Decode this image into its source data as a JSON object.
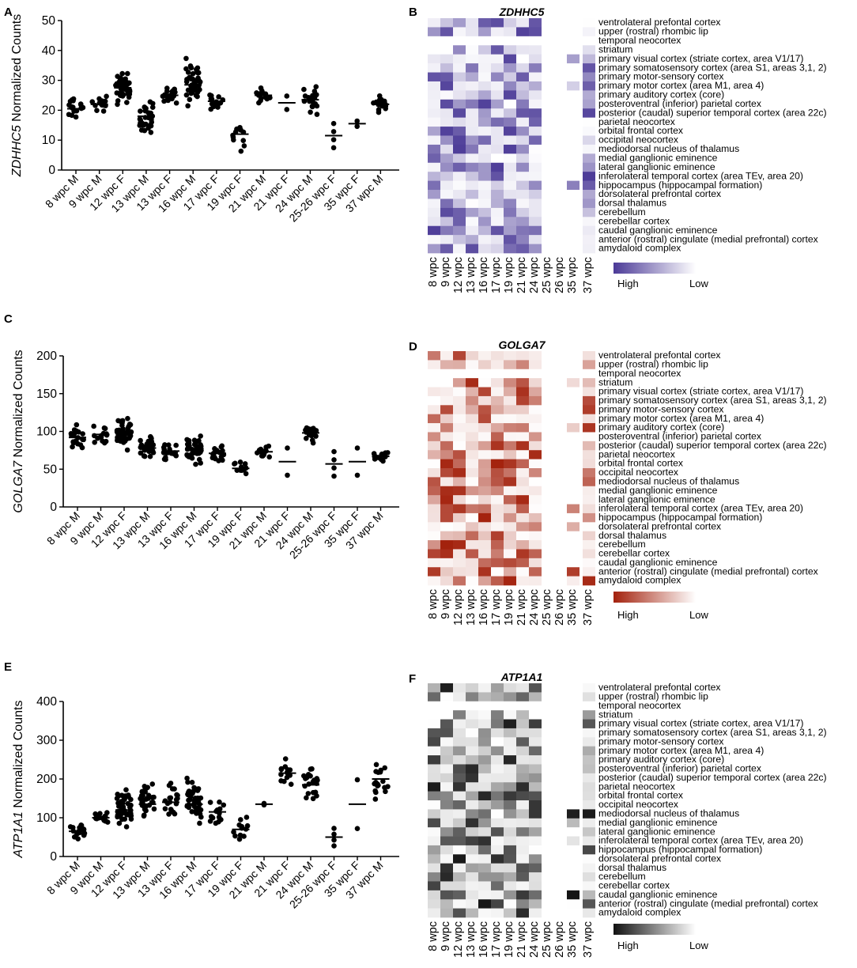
{
  "chart_data": [
    {
      "panel": "A",
      "type": "scatter",
      "gene": "ZDHHC5",
      "ylabel_suffix": " Normalized Counts",
      "ylim": [
        0,
        50
      ],
      "yticks": [
        0,
        10,
        20,
        30,
        40,
        50
      ],
      "categories": [
        "8 wpc M",
        "9 wpc M",
        "12 wpc F",
        "13 wpc M",
        "13 wpc F",
        "16 wpc M",
        "17 wpc F",
        "19 wpc F",
        "21 wpc M",
        "21 wpc F",
        "24 wpc M",
        "25-26 wpc F",
        "35 wpc F",
        "37 wpc M"
      ],
      "means": [
        20.5,
        22,
        27.5,
        18,
        25,
        28.5,
        23,
        12,
        25,
        22.5,
        23.5,
        11.5,
        15.5,
        22
      ],
      "counts": [
        20,
        15,
        50,
        30,
        20,
        45,
        15,
        12,
        14,
        2,
        20,
        4,
        2,
        18
      ],
      "spreads": [
        4,
        3,
        4.5,
        5,
        2.5,
        6,
        3,
        4,
        2,
        2.5,
        4,
        4.5,
        1,
        3
      ]
    },
    {
      "panel": "C",
      "type": "scatter",
      "gene": "GOLGA7",
      "ylabel_suffix": " Normalized Counts",
      "ylim": [
        0,
        200
      ],
      "yticks": [
        0,
        50,
        100,
        150,
        200
      ],
      "categories": [
        "8 wpc M",
        "9 wpc M",
        "12 wpc F",
        "13 wpc M",
        "13 wpc F",
        "16 wpc M",
        "17 wpc F",
        "19 wpc F",
        "21 wpc M",
        "21 wpc F",
        "24 wpc M",
        "25-26 wpc F",
        "35 wpc F",
        "37 wpc M"
      ],
      "means": [
        92,
        96,
        97,
        78,
        74,
        75,
        71,
        51,
        73,
        60,
        98,
        57,
        60,
        67
      ],
      "counts": [
        20,
        15,
        50,
        30,
        20,
        45,
        15,
        12,
        14,
        2,
        20,
        4,
        2,
        18
      ],
      "spreads": [
        12,
        12,
        16,
        14,
        10,
        17,
        10,
        10,
        7,
        20,
        12,
        18,
        20,
        7
      ]
    },
    {
      "panel": "E",
      "type": "scatter",
      "gene": "ATP1A1",
      "ylabel_suffix": " Normalized Counts",
      "ylim": [
        0,
        400
      ],
      "yticks": [
        0,
        100,
        200,
        300,
        400
      ],
      "categories": [
        "8 wpc M",
        "9 wpc M",
        "12 wpc F",
        "13 wpc M",
        "13 wpc F",
        "16 wpc M",
        "17 wpc F",
        "19 wpc F",
        "21 wpc M",
        "21 wpc F",
        "24 wpc M",
        "25-26 wpc F",
        "35 wpc F",
        "37 wpc M"
      ],
      "means": [
        65,
        100,
        120,
        135,
        140,
        135,
        115,
        70,
        135,
        215,
        185,
        50,
        135,
        200
      ],
      "counts": [
        20,
        15,
        50,
        30,
        20,
        45,
        15,
        12,
        2,
        14,
        20,
        4,
        2,
        18
      ],
      "spreads": [
        15,
        15,
        45,
        45,
        40,
        50,
        35,
        28,
        2,
        40,
        40,
        25,
        70,
        50
      ]
    },
    {
      "panel": "B",
      "type": "heatmap",
      "title": "ZDHHC5",
      "palette": {
        "high": "#4b3a97",
        "low": "#ffffff"
      },
      "legend": {
        "high": "High",
        "low": "Low"
      }
    },
    {
      "panel": "D",
      "type": "heatmap",
      "title": "GOLGA7",
      "palette": {
        "high": "#a3210c",
        "low": "#ffffff"
      },
      "legend": {
        "high": "High",
        "low": "Low"
      }
    },
    {
      "panel": "F",
      "type": "heatmap",
      "title": "ATP1A1",
      "palette": {
        "high": "#111111",
        "low": "#ffffff"
      },
      "legend": {
        "high": "High",
        "low": "Low"
      }
    }
  ],
  "panel_labels": [
    "A",
    "B",
    "C",
    "D",
    "E",
    "F"
  ],
  "heatmap_columns": [
    "8 wpc",
    "9 wpc",
    "12 wpc",
    "13 wpc",
    "16 wpc",
    "17 wpc",
    "19 wpc",
    "21 wpc",
    "24 wpc",
    "25 wpc",
    "26 wpc",
    "35 wpc",
    "37 wpc"
  ],
  "heatmap_rows": [
    "ventrolateral prefontal cortex",
    "upper (rostral) rhombic lip",
    "temporal neocortex",
    "striatum",
    "primary visual cortex (striate cortex, area V1/17)",
    "primary somatosensory cortex (area S1, areas 3,1, 2)",
    "primary motor-sensory cortex",
    "primary motor cortex (area M1, area 4)",
    "primary auditory cortex (core)",
    "posteroventral (inferior) parietal cortex",
    "posterior (caudal) superior temporal cortex (area 22c)",
    "parietal neocortex",
    "orbital frontal cortex",
    "occipital neocortex",
    "mediodorsal nucleus of thalamus",
    "medial ganglionic eminence",
    "lateral ganglionic eminence",
    "inferolateral temporal cortex (area TEv, area 20)",
    "hippocampus (hippocampal formation)",
    "dorsolateral prefrontal cortex",
    "dorsal thalamus",
    "cerebellum",
    "cerebellar cortex",
    "caudal ganglionic eminence",
    "anterior (rostral) cingulate (medial prefrontal) cortex",
    "amydaloid complex"
  ]
}
